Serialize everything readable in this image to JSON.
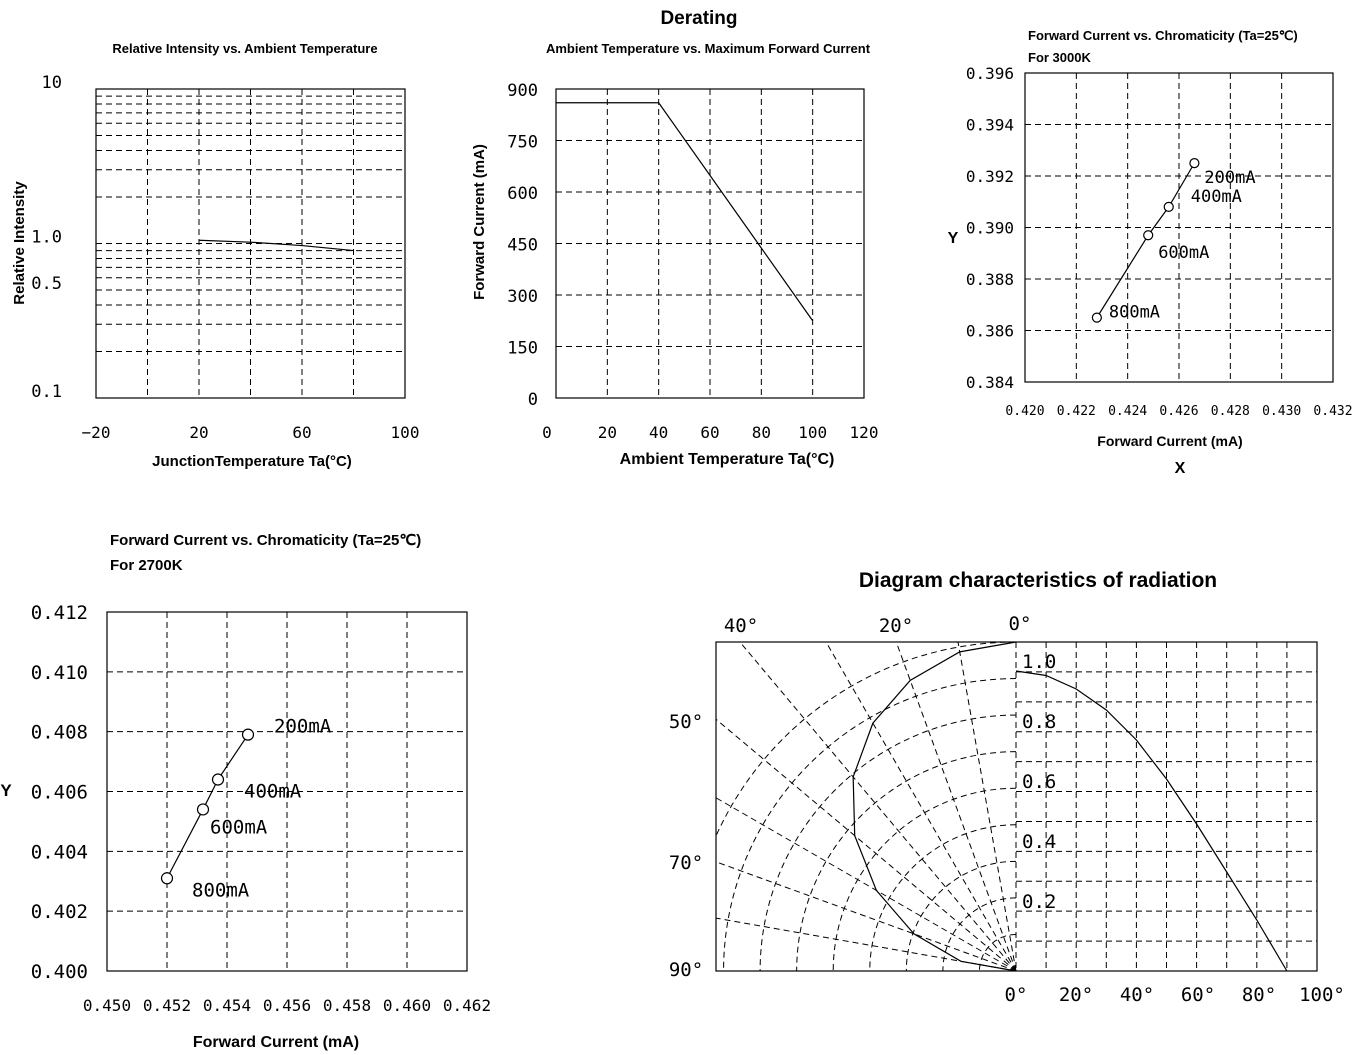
{
  "page_title": "Derating",
  "chart_data": [
    {
      "id": "intensity",
      "type": "line",
      "title": "Relative Intensity vs. Ambient Temperature",
      "xlabel": "JunctionTemperature Ta(°C)",
      "ylabel": "Relative Intensity",
      "xlim": [
        -20,
        100
      ],
      "ylim": [
        0.1,
        10
      ],
      "yscale": "log",
      "xticks": [
        -20,
        20,
        60,
        100
      ],
      "xtick_labels": [
        "−20",
        "20",
        "60",
        "100"
      ],
      "ytick_labels": [
        "10",
        "1.0",
        "0.5",
        "0.1"
      ],
      "grid": true,
      "series": [
        {
          "x": [
            20,
            40,
            60,
            80
          ],
          "y": [
            1.05,
            1.02,
            0.97,
            0.9
          ]
        }
      ]
    },
    {
      "id": "derating",
      "type": "line",
      "title": "Ambient Temperature vs. Maximum Forward Current",
      "xlabel": "Ambient Temperature Ta(°C)",
      "ylabel": "Forward Current (mA)",
      "xlim": [
        0,
        120
      ],
      "ylim": [
        0,
        900
      ],
      "xticks": [
        0,
        20,
        40,
        60,
        80,
        100,
        120
      ],
      "yticks": [
        0,
        150,
        300,
        450,
        600,
        750,
        900
      ],
      "grid": true,
      "series": [
        {
          "x": [
            0,
            40,
            100
          ],
          "y": [
            860,
            860,
            225
          ]
        }
      ]
    },
    {
      "id": "chroma3000",
      "type": "scatter",
      "title": "Forward Current vs. Chromaticity (Ta=25℃)",
      "subtitle": "For 3000K",
      "xlabel": "Forward Current (mA)",
      "xlabel2": "X",
      "ylabel": "Y",
      "xlim": [
        0.42,
        0.432
      ],
      "ylim": [
        0.384,
        0.396
      ],
      "xticks": [
        "0.420",
        "0.422",
        "0.424",
        "0.426",
        "0.428",
        "0.430",
        "0.432"
      ],
      "yticks": [
        "0.384",
        "0.386",
        "0.388",
        "0.390",
        "0.392",
        "0.394",
        "0.396"
      ],
      "grid": true,
      "points": [
        {
          "label": "200mA",
          "x": 0.4266,
          "y": 0.3925
        },
        {
          "label": "400mA",
          "x": 0.4256,
          "y": 0.3908
        },
        {
          "label": "600mA",
          "x": 0.4248,
          "y": 0.3897
        },
        {
          "label": "800mA",
          "x": 0.4228,
          "y": 0.3865
        }
      ]
    },
    {
      "id": "chroma2700",
      "type": "scatter",
      "title": "Forward Current vs. Chromaticity (Ta=25℃)",
      "subtitle": "For 2700K",
      "xlabel": "Forward Current (mA)",
      "ylabel": "Y",
      "xlim": [
        0.45,
        0.462
      ],
      "ylim": [
        0.4,
        0.412
      ],
      "xticks": [
        "0.450",
        "0.452",
        "0.454",
        "0.456",
        "0.458",
        "0.460",
        "0.462"
      ],
      "yticks": [
        "0.400",
        "0.402",
        "0.404",
        "0.406",
        "0.408",
        "0.410",
        "0.412"
      ],
      "grid": true,
      "points": [
        {
          "label": "200mA",
          "x": 0.4547,
          "y": 0.4079
        },
        {
          "label": "400mA",
          "x": 0.4537,
          "y": 0.4064
        },
        {
          "label": "600mA",
          "x": 0.4532,
          "y": 0.4054
        },
        {
          "label": "800mA",
          "x": 0.452,
          "y": 0.4031
        }
      ]
    },
    {
      "id": "radiation",
      "type": "polar",
      "title": "Diagram characteristics of radiation",
      "angle_labels": [
        "40°",
        "20°",
        "0°",
        "50°",
        "70°",
        "90°"
      ],
      "radial_labels": [
        "1.0",
        "0.8",
        "0.6",
        "0.4",
        "0.2"
      ],
      "bottom_labels": [
        "0°",
        "20°",
        "40°",
        "60°",
        "80°",
        "100°"
      ],
      "grid": true,
      "series": [
        {
          "angle_deg": [
            0,
            10,
            20,
            30,
            40,
            50,
            60,
            70,
            80,
            90
          ],
          "intensity": [
            1.0,
            0.985,
            0.94,
            0.87,
            0.77,
            0.64,
            0.49,
            0.33,
            0.17,
            0.0
          ]
        }
      ]
    }
  ]
}
